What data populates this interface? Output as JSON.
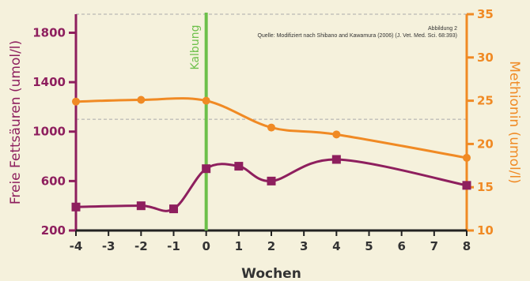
{
  "chart_data": {
    "type": "line",
    "xlabel": "Wochen",
    "x_ticks": [
      -4,
      -3,
      -2,
      -1,
      0,
      1,
      2,
      3,
      4,
      5,
      6,
      7,
      8
    ],
    "xlim": [
      -4,
      8
    ],
    "y_left": {
      "label": "Freie Fettsäuren (umol/l)",
      "lim": [
        200,
        1950
      ],
      "ticks": [
        200,
        600,
        1000,
        1400,
        1800
      ]
    },
    "y_right": {
      "label": "Methionin (umol/l)",
      "lim": [
        10,
        35
      ],
      "ticks": [
        10,
        15,
        20,
        25,
        30,
        35
      ]
    },
    "series": [
      {
        "name": "Freie Fettsäuren",
        "axis": "left",
        "marker": "square",
        "x": [
          -4,
          -2,
          -1,
          0,
          1,
          2,
          4,
          8
        ],
        "values": [
          390,
          400,
          375,
          700,
          720,
          600,
          775,
          565
        ]
      },
      {
        "name": "Methionin",
        "axis": "right",
        "marker": "circle",
        "x": [
          -4,
          -2,
          0,
          2,
          4,
          8
        ],
        "values": [
          24.9,
          25.1,
          25.0,
          21.9,
          21.1,
          18.4
        ]
      }
    ],
    "event": {
      "x": 0,
      "label": "Kalbung"
    },
    "reference_lines": [
      {
        "axis": "left",
        "value": 1950,
        "style": "dashed"
      },
      {
        "axis": "left",
        "value": 1100,
        "style": "dashed"
      }
    ],
    "annotation": {
      "line1": "Abbildung 2",
      "line2": "Quelle: Modifiziert nach Shibano and Kawamura (2006) (J. Vet. Med. Sci. 68:393)"
    },
    "grid": false,
    "colors": {
      "background": "#f5f1dc",
      "left": "#8e1f5e",
      "right": "#f08a24",
      "event": "#6cc04a",
      "axis": "#222222",
      "reference": "#aaaaaa"
    }
  }
}
